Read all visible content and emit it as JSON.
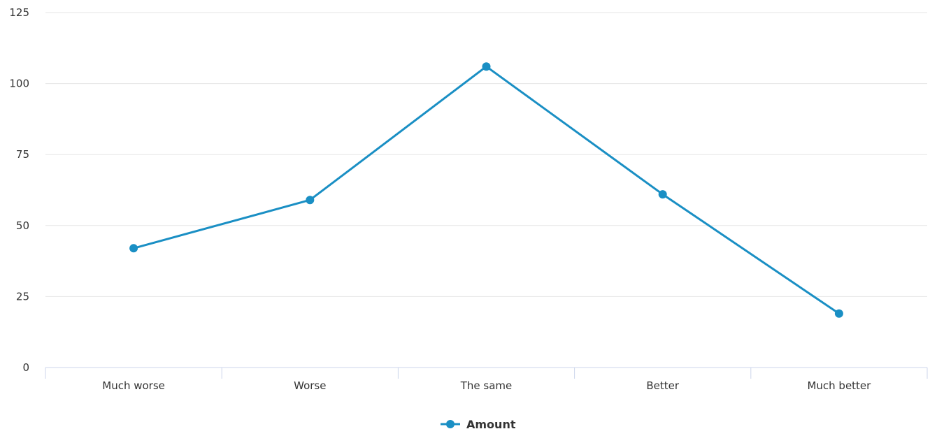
{
  "chart_data": {
    "type": "line",
    "categories": [
      "Much worse",
      "Worse",
      "The same",
      "Better",
      "Much better"
    ],
    "series": [
      {
        "name": "Amount",
        "values": [
          42,
          59,
          106,
          61,
          19
        ]
      }
    ],
    "yticks": [
      "0",
      "25",
      "50",
      "75",
      "100",
      "125"
    ],
    "ylim": [
      0,
      125
    ],
    "grid": true,
    "legend_position": "bottom-center",
    "line_color": "#1a8fc4",
    "grid_color": "#e6e6e6",
    "axis_color": "#ccd6eb"
  }
}
